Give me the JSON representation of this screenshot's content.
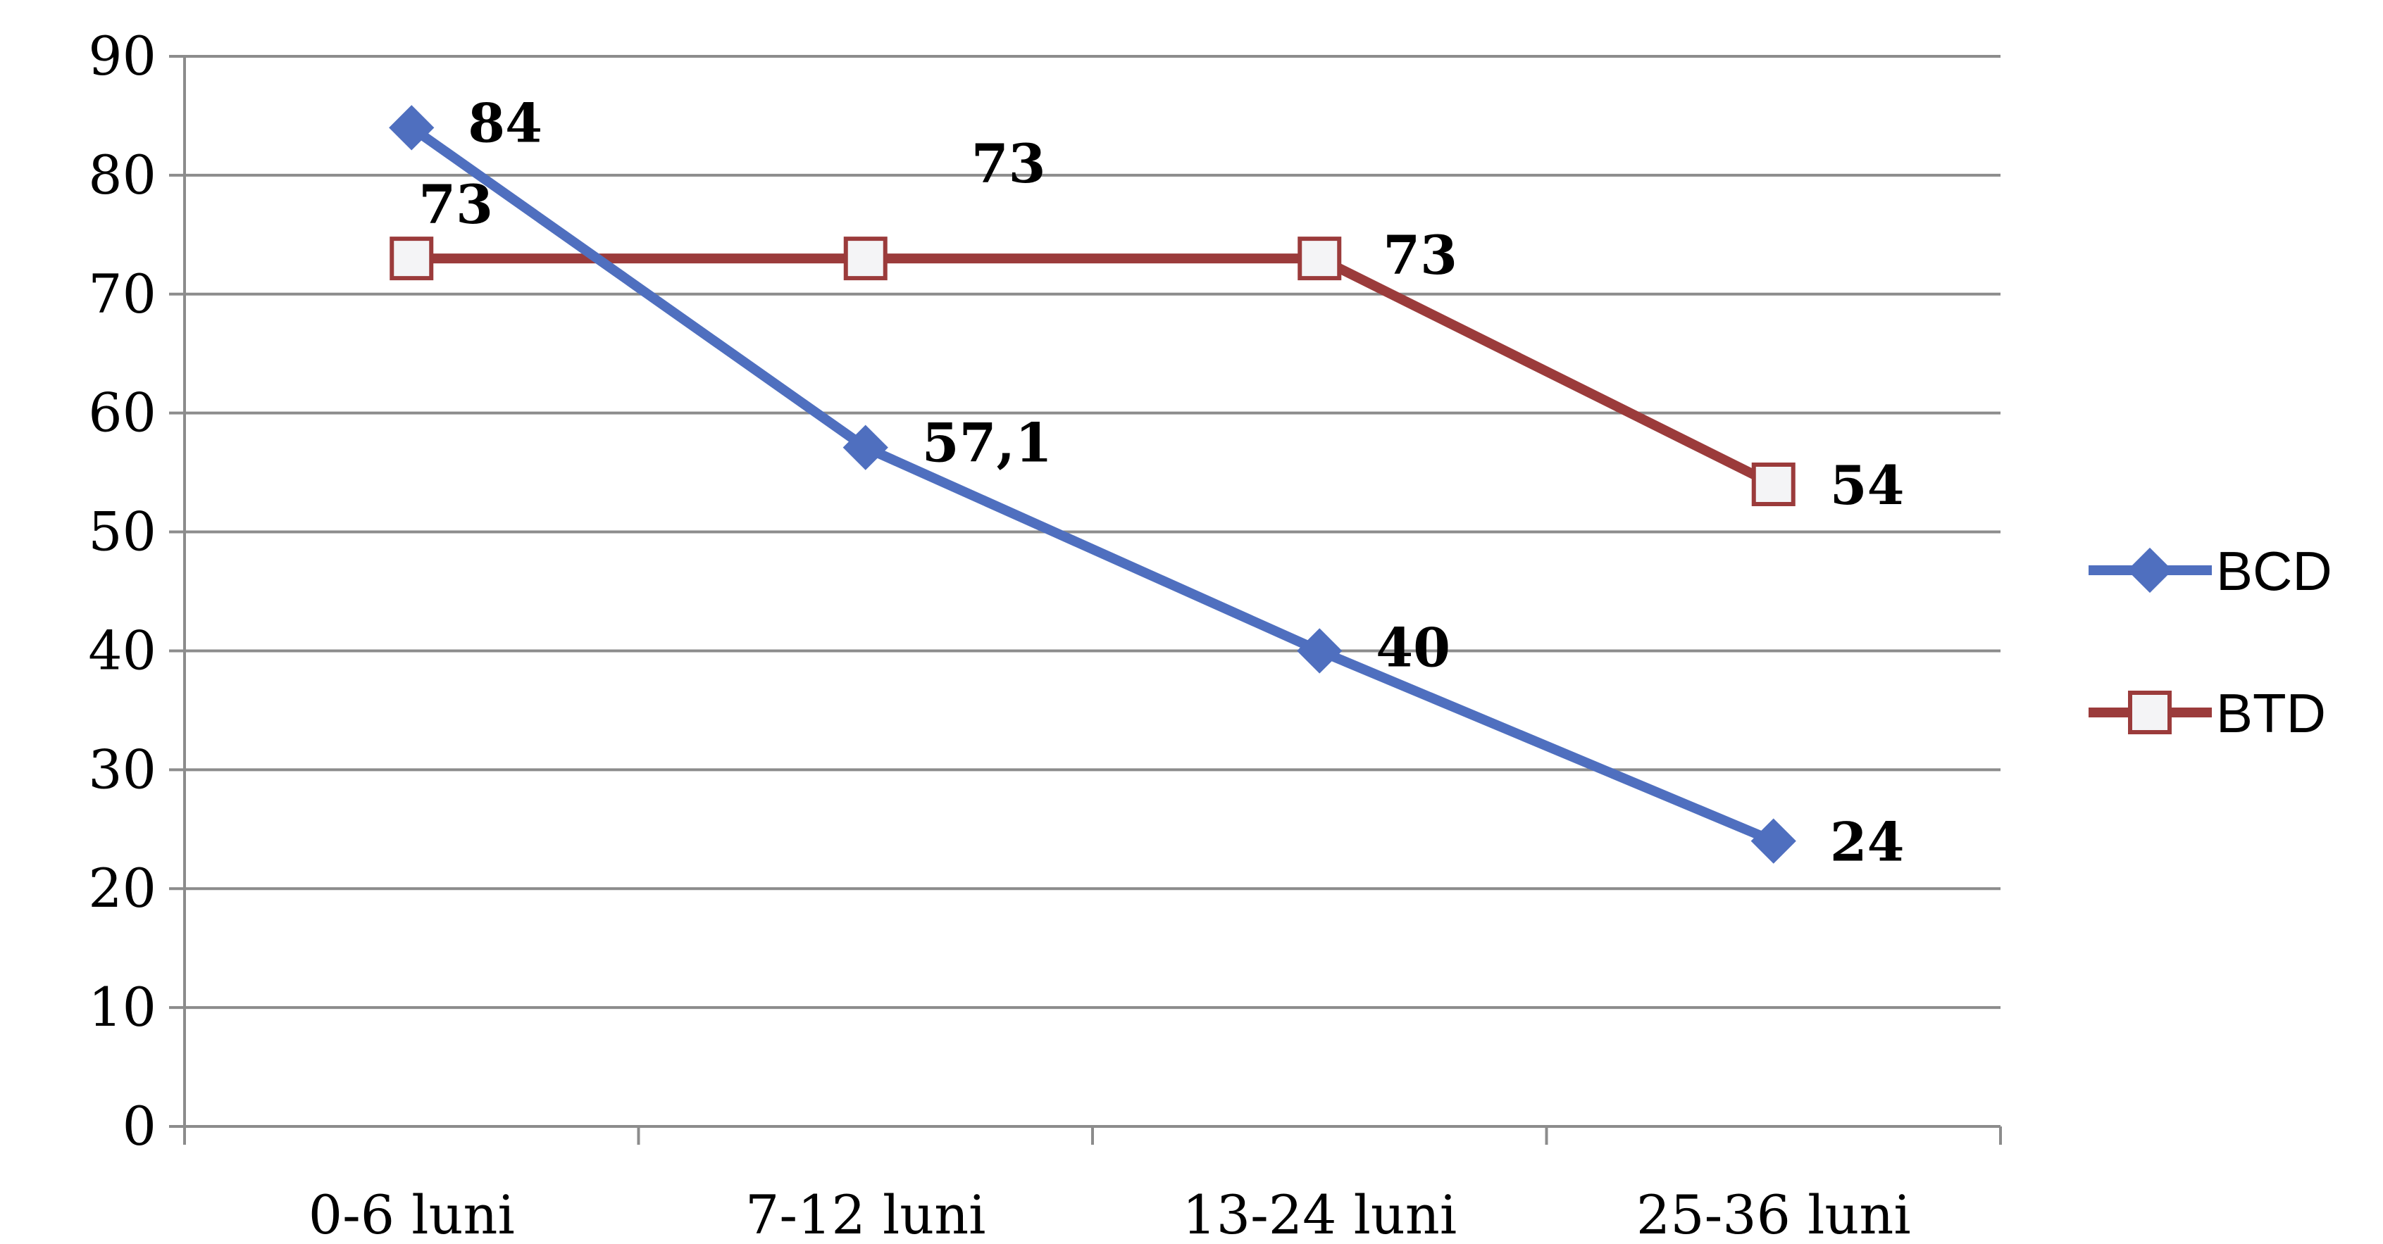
{
  "chart_data": {
    "type": "line",
    "categories": [
      "0-6 luni",
      "7-12 luni",
      "13-24 luni",
      "25-36 luni"
    ],
    "series": [
      {
        "name": "BCD",
        "values": [
          84,
          57.1,
          40,
          24
        ],
        "labels": [
          "84",
          "57,1",
          "40",
          "24"
        ],
        "color": "#4f6fbf",
        "marker": "diamond"
      },
      {
        "name": "BTD",
        "values": [
          73,
          73,
          73,
          54
        ],
        "labels": [
          "73",
          "73",
          "73",
          "54"
        ],
        "color": "#9b3b3b",
        "marker": "square"
      }
    ],
    "ylim": [
      0,
      90
    ],
    "yticks": [
      0,
      10,
      20,
      30,
      40,
      50,
      60,
      70,
      80,
      90
    ],
    "title": "",
    "xlabel": "",
    "ylabel": "",
    "grid": true,
    "legend": "right"
  }
}
